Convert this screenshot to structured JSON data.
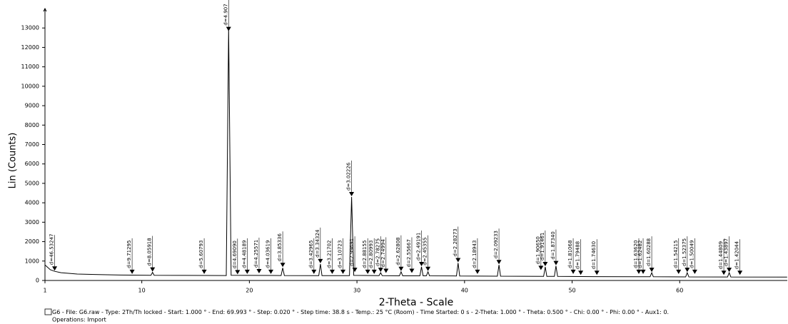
{
  "chart_data": {
    "type": "line",
    "x_label": "2-Theta - Scale",
    "y_label": "Lin (Counts)",
    "footer": "G6 - File: G6.raw - Type: 2Th/Th locked - Start: 1.000 ° - End: 69.993 ° - Step: 0.020 ° - Step time: 38.8 s - Temp.: 25 °C (Room) - Time Started: 0 s - 2-Theta: 1.000 ° - Theta: 0.500 ° - Chi: 0.00 ° - Phi: 0.00 ° - Aux1: 0.",
    "operations": "Operations: Import",
    "xlim": [
      1,
      70
    ],
    "xticks": [
      1,
      10,
      20,
      30,
      40,
      50,
      60
    ],
    "ylim": [
      0,
      14000
    ],
    "yticks": [
      0,
      1000,
      2000,
      3000,
      4000,
      5000,
      6000,
      7000,
      8000,
      9000,
      10000,
      11000,
      12000,
      13000
    ],
    "series": [
      {
        "name": "G6",
        "color": "#000000",
        "x": [
          1.0,
          1.5,
          1.9,
          2.5,
          4,
          6,
          8,
          10.85,
          11.0,
          11.15,
          14,
          17.85,
          18.07,
          18.3,
          20,
          22.95,
          23.1,
          23.25,
          26.45,
          26.6,
          26.75,
          29.3,
          29.5,
          29.7,
          32.05,
          32.2,
          32.35,
          33.95,
          34.1,
          34.25,
          35.85,
          36.0,
          36.15,
          36.45,
          36.6,
          36.75,
          39.25,
          39.4,
          39.55,
          43.05,
          43.2,
          43.35,
          47.35,
          47.5,
          47.65,
          48.35,
          48.5,
          48.65,
          52,
          57.25,
          57.4,
          57.55,
          60.55,
          60.7,
          60.85,
          64.45,
          64.6,
          64.75,
          69.99
        ],
        "values": [
          800,
          550,
          470,
          400,
          330,
          300,
          280,
          265,
          420,
          265,
          260,
          255,
          13000,
          270,
          260,
          255,
          650,
          255,
          250,
          850,
          250,
          250,
          4300,
          260,
          245,
          400,
          245,
          240,
          450,
          240,
          240,
          700,
          240,
          240,
          450,
          240,
          230,
          900,
          230,
          220,
          800,
          220,
          210,
          700,
          210,
          210,
          750,
          210,
          200,
          190,
          400,
          190,
          185,
          400,
          185,
          180,
          400,
          180,
          175
        ]
      }
    ],
    "peaks": [
      {
        "x": 1.9,
        "y": 470,
        "label": "d=46.53247"
      },
      {
        "x": 9.1,
        "y": 300,
        "label": "d=9.71295"
      },
      {
        "x": 11.0,
        "y": 420,
        "label": "d=8.05918"
      },
      {
        "x": 15.8,
        "y": 300,
        "label": "d=5.60793"
      },
      {
        "x": 18.07,
        "y": 12800,
        "label": "d=4.907"
      },
      {
        "x": 18.9,
        "y": 280,
        "label": "d=4.69090"
      },
      {
        "x": 19.8,
        "y": 300,
        "label": "d=4.48189"
      },
      {
        "x": 20.9,
        "y": 330,
        "label": "d=4.25571"
      },
      {
        "x": 22.0,
        "y": 300,
        "label": "d=4.03619"
      },
      {
        "x": 23.1,
        "y": 650,
        "label": "d=3.85336"
      },
      {
        "x": 26.0,
        "y": 300,
        "label": "d=3.42965"
      },
      {
        "x": 26.6,
        "y": 850,
        "label": "d=3.34324"
      },
      {
        "x": 27.7,
        "y": 300,
        "label": "d=3.21702"
      },
      {
        "x": 28.7,
        "y": 300,
        "label": "d=3.10723"
      },
      {
        "x": 29.5,
        "y": 4300,
        "label": "d=3.02226"
      },
      {
        "x": 29.8,
        "y": 400,
        "label": "d=2.99691"
      },
      {
        "x": 31.0,
        "y": 300,
        "label": "d=2.88155"
      },
      {
        "x": 31.6,
        "y": 300,
        "label": "d=2.80993"
      },
      {
        "x": 32.2,
        "y": 400,
        "label": "d=2.78275"
      },
      {
        "x": 32.7,
        "y": 350,
        "label": "d=2.74994"
      },
      {
        "x": 34.1,
        "y": 450,
        "label": "d=2.62808"
      },
      {
        "x": 35.1,
        "y": 350,
        "label": "d=2.55667"
      },
      {
        "x": 36.0,
        "y": 700,
        "label": "d=2.49191"
      },
      {
        "x": 36.6,
        "y": 450,
        "label": "d=2.45355"
      },
      {
        "x": 39.4,
        "y": 900,
        "label": "d=2.28273"
      },
      {
        "x": 41.2,
        "y": 300,
        "label": "d=2.18943"
      },
      {
        "x": 43.2,
        "y": 800,
        "label": "d=2.09233"
      },
      {
        "x": 47.1,
        "y": 500,
        "label": "d=1.90650"
      },
      {
        "x": 47.5,
        "y": 700,
        "label": "d=1.91461"
      },
      {
        "x": 48.5,
        "y": 750,
        "label": "d=1.87340"
      },
      {
        "x": 50.1,
        "y": 300,
        "label": "d=1.81068"
      },
      {
        "x": 50.8,
        "y": 250,
        "label": "d=1.79488"
      },
      {
        "x": 52.3,
        "y": 250,
        "label": "d=1.74630"
      },
      {
        "x": 56.2,
        "y": 300,
        "label": "d=1.63620"
      },
      {
        "x": 56.6,
        "y": 300,
        "label": "d=1.62482"
      },
      {
        "x": 57.4,
        "y": 400,
        "label": "d=1.60288"
      },
      {
        "x": 59.9,
        "y": 300,
        "label": "d=1.54215"
      },
      {
        "x": 60.7,
        "y": 400,
        "label": "d=1.52375"
      },
      {
        "x": 61.4,
        "y": 300,
        "label": "d=1.50049"
      },
      {
        "x": 64.1,
        "y": 250,
        "label": "d=1.44809"
      },
      {
        "x": 64.6,
        "y": 400,
        "label": "d=1.43897"
      },
      {
        "x": 65.6,
        "y": 250,
        "label": "d=1.42044"
      }
    ]
  }
}
